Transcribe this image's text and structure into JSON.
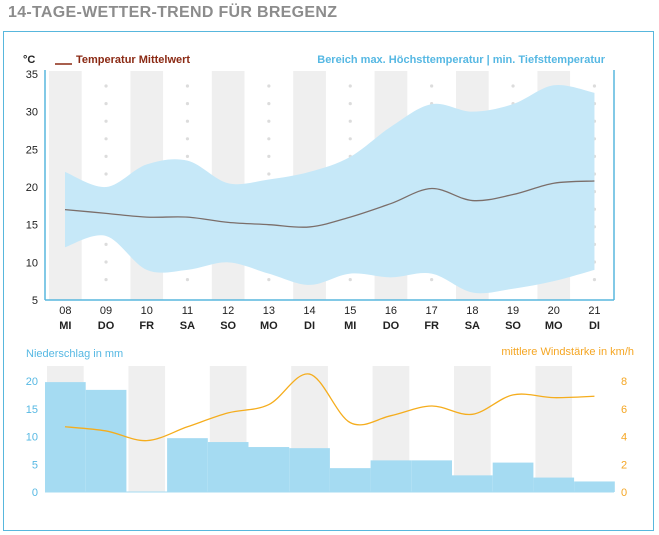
{
  "page": {
    "title": "14-TAGE-WETTER-TREND FÜR BREGENZ"
  },
  "colors": {
    "title": "#8c8c8c",
    "frame": "#58b7dd",
    "range_fill": "#c6e8f8",
    "mean_line": "#7b6e6a",
    "precip_bar": "#a5dbf2",
    "wind_line": "#f5ad1d",
    "precip_text": "#56b8e3",
    "wind_text": "#f5a623",
    "legend_temp": "#8b2a14",
    "band": "#efefef",
    "dot": "#dcdcdc"
  },
  "chart_data": [
    {
      "type": "area",
      "title": "14-Tage-Wetter-Trend für Bregenz",
      "unit": "°C",
      "ylim": [
        5,
        35
      ],
      "yticks": [
        5,
        10,
        15,
        20,
        25,
        30,
        35
      ],
      "legend_mean": "Temperatur Mittelwert",
      "legend_range": "Bereich max. Höchsttemperatur | min. Tiefsttemperatur",
      "dates": [
        "08",
        "09",
        "10",
        "11",
        "12",
        "13",
        "14",
        "15",
        "16",
        "17",
        "18",
        "19",
        "20",
        "21"
      ],
      "weekdays": [
        "MI",
        "DO",
        "FR",
        "SA",
        "SO",
        "MO",
        "DI",
        "MI",
        "DO",
        "FR",
        "SA",
        "SO",
        "MO",
        "DI"
      ],
      "series": [
        {
          "name": "max",
          "values": [
            22,
            20,
            23,
            23.5,
            20.5,
            21,
            22,
            24,
            28,
            31,
            30,
            31,
            33.5,
            32.5
          ]
        },
        {
          "name": "min",
          "values": [
            12,
            13.5,
            9,
            9,
            10,
            8.5,
            7,
            8.5,
            8,
            8.5,
            6,
            6.5,
            7.5,
            9
          ]
        },
        {
          "name": "mean",
          "values": [
            17,
            16.5,
            16,
            16,
            15.3,
            15,
            14.7,
            16,
            17.8,
            19.8,
            18.2,
            19,
            20.5,
            20.8
          ]
        }
      ]
    },
    {
      "type": "bar",
      "precip_label": "Niederschlag in mm",
      "wind_label": "mittlere Windstärke in km/h",
      "ylim_left": [
        0,
        20
      ],
      "yticks_left": [
        0,
        5,
        10,
        15,
        20
      ],
      "ylim_right": [
        0,
        8
      ],
      "yticks_right": [
        0,
        2,
        4,
        6,
        8
      ],
      "precip_values": [
        19.8,
        18.4,
        0,
        9.7,
        9,
        8.1,
        7.9,
        4.3,
        5.7,
        5.7,
        3,
        5.3,
        2.6,
        1.9
      ],
      "wind_values": [
        4.7,
        4.4,
        3.7,
        4.7,
        5.7,
        6.3,
        8.5,
        5.0,
        5.5,
        6.2,
        5.6,
        7.0,
        6.8,
        6.9
      ]
    }
  ]
}
